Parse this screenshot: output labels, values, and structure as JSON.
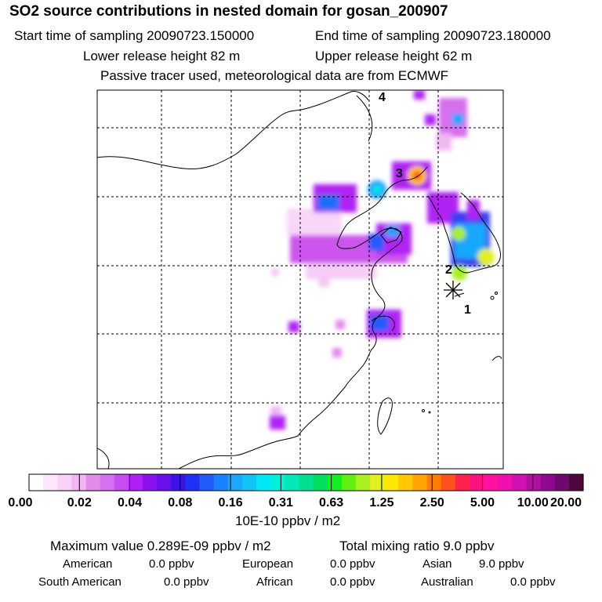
{
  "header": {
    "title": "SO2 source contributions in nested domain for gosan_200907",
    "start_time": "Start time of sampling 20090723.150000",
    "end_time": "End time of sampling 20090723.180000",
    "lower_release": "Lower release height   82 m",
    "upper_release": "Upper release height   62 m",
    "tracer_note": "Passive tracer used, meteorological data are from ECMWF"
  },
  "map": {
    "labels": [
      "1",
      "2",
      "3",
      "4"
    ]
  },
  "colorbar": {
    "ticks": [
      "0.00",
      "0.02",
      "0.04",
      "0.08",
      "0.16",
      "0.31",
      "0.63",
      "1.25",
      "2.50",
      "5.00",
      "10.00",
      "20.00"
    ],
    "colors": [
      "#ffffff",
      "#fce6fc",
      "#f8d0f8",
      "#f2b6f2",
      "#e28be8",
      "#d770ee",
      "#c84cf2",
      "#b020f6",
      "#8d10f0",
      "#6a10ec",
      "#3a12ea",
      "#2030f4",
      "#205cfc",
      "#1a82fc",
      "#18a8fc",
      "#10c4f8",
      "#00e8f4",
      "#00f2d8",
      "#00eab8",
      "#00e090",
      "#00e060",
      "#10f020",
      "#60f010",
      "#a8f020",
      "#e0f020",
      "#ffe800",
      "#ffc800",
      "#ffa400",
      "#ff7e00",
      "#ff5020",
      "#ff2050",
      "#ff1080",
      "#ff10a0",
      "#f010b0",
      "#d010b0",
      "#b010a0",
      "#900890",
      "#700870",
      "#50083c"
    ],
    "unit": "10E-10 ppbv / m2"
  },
  "summary": {
    "maximum": "Maximum value  0.289E-09 ppbv / m2",
    "total": "Total mixing ratio       9.0 ppbv",
    "regions": [
      {
        "name": "American",
        "value": "0.0 ppbv"
      },
      {
        "name": "European",
        "value": "0.0 ppbv"
      },
      {
        "name": "Asian",
        "value": "9.0 ppbv"
      },
      {
        "name": "South American",
        "value": "0.0 ppbv"
      },
      {
        "name": "African",
        "value": "0.0 ppbv"
      },
      {
        "name": "Australian",
        "value": "0.0 ppbv"
      }
    ]
  }
}
